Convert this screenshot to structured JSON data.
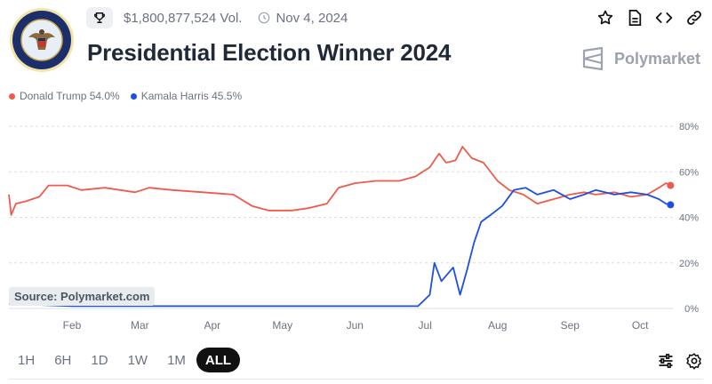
{
  "header": {
    "volume": "$1,800,877,524 Vol.",
    "date": "Nov 4, 2024",
    "title": "Presidential Election Winner 2024",
    "brand": "Polymarket",
    "icons": [
      "trophy-icon",
      "clock-icon",
      "star-icon",
      "document-icon",
      "code-icon",
      "link-icon"
    ]
  },
  "legend": [
    {
      "label": "Donald Trump 54.0%",
      "color": "#ef5a4f"
    },
    {
      "label": "Kamala Harris 45.5%",
      "color": "#1e4fe0"
    }
  ],
  "source": "Source: Polymarket.com",
  "timeframes": {
    "options": [
      "1H",
      "6H",
      "1D",
      "1W",
      "1M",
      "ALL"
    ],
    "selected": "ALL"
  },
  "chart_data": {
    "type": "line",
    "x_ticks": [
      "Feb",
      "Mar",
      "Apr",
      "May",
      "Jun",
      "Jul",
      "Aug",
      "Sep",
      "Oct"
    ],
    "x_tick_dates": [
      "2024-02-01",
      "2024-03-01",
      "2024-04-01",
      "2024-05-01",
      "2024-06-01",
      "2024-07-01",
      "2024-08-01",
      "2024-09-01",
      "2024-10-01"
    ],
    "x_range": [
      "2024-01-05",
      "2024-10-15"
    ],
    "y_ticks": [
      "0%",
      "20%",
      "40%",
      "60%",
      "80%"
    ],
    "ylim": [
      0,
      80
    ],
    "grid": true,
    "series": [
      {
        "name": "Donald Trump",
        "color": "#ef5a4f",
        "points": [
          [
            "2024-01-05",
            50
          ],
          [
            "2024-01-06",
            41
          ],
          [
            "2024-01-08",
            46
          ],
          [
            "2024-01-12",
            47
          ],
          [
            "2024-01-18",
            49
          ],
          [
            "2024-01-22",
            54
          ],
          [
            "2024-01-30",
            54
          ],
          [
            "2024-02-05",
            52
          ],
          [
            "2024-02-15",
            53
          ],
          [
            "2024-02-28",
            51
          ],
          [
            "2024-03-05",
            53
          ],
          [
            "2024-03-15",
            52
          ],
          [
            "2024-03-28",
            51
          ],
          [
            "2024-04-10",
            50
          ],
          [
            "2024-04-18",
            45
          ],
          [
            "2024-04-25",
            43
          ],
          [
            "2024-05-05",
            43
          ],
          [
            "2024-05-12",
            44
          ],
          [
            "2024-05-20",
            46
          ],
          [
            "2024-05-25",
            53
          ],
          [
            "2024-06-01",
            55
          ],
          [
            "2024-06-10",
            56
          ],
          [
            "2024-06-20",
            56
          ],
          [
            "2024-06-27",
            58
          ],
          [
            "2024-07-03",
            62
          ],
          [
            "2024-07-07",
            68
          ],
          [
            "2024-07-10",
            64
          ],
          [
            "2024-07-14",
            65
          ],
          [
            "2024-07-17",
            71
          ],
          [
            "2024-07-21",
            66
          ],
          [
            "2024-07-26",
            64
          ],
          [
            "2024-08-01",
            56
          ],
          [
            "2024-08-06",
            52
          ],
          [
            "2024-08-12",
            50
          ],
          [
            "2024-08-18",
            46
          ],
          [
            "2024-08-25",
            48
          ],
          [
            "2024-09-01",
            50
          ],
          [
            "2024-09-07",
            51
          ],
          [
            "2024-09-12",
            50
          ],
          [
            "2024-09-20",
            51
          ],
          [
            "2024-09-27",
            49
          ],
          [
            "2024-10-04",
            50
          ],
          [
            "2024-10-09",
            53
          ],
          [
            "2024-10-12",
            55
          ],
          [
            "2024-10-14",
            54
          ]
        ]
      },
      {
        "name": "Kamala Harris",
        "color": "#1e4fe0",
        "points": [
          [
            "2024-01-05",
            2
          ],
          [
            "2024-02-01",
            1
          ],
          [
            "2024-03-01",
            1
          ],
          [
            "2024-04-01",
            1
          ],
          [
            "2024-05-01",
            1
          ],
          [
            "2024-06-01",
            1
          ],
          [
            "2024-06-28",
            1
          ],
          [
            "2024-07-03",
            6
          ],
          [
            "2024-07-05",
            20
          ],
          [
            "2024-07-08",
            12
          ],
          [
            "2024-07-13",
            18
          ],
          [
            "2024-07-16",
            6
          ],
          [
            "2024-07-19",
            17
          ],
          [
            "2024-07-22",
            29
          ],
          [
            "2024-07-25",
            38
          ],
          [
            "2024-07-29",
            41
          ],
          [
            "2024-08-03",
            45
          ],
          [
            "2024-08-08",
            52
          ],
          [
            "2024-08-13",
            53
          ],
          [
            "2024-08-18",
            50
          ],
          [
            "2024-08-25",
            52
          ],
          [
            "2024-09-01",
            48
          ],
          [
            "2024-09-07",
            50
          ],
          [
            "2024-09-12",
            52
          ],
          [
            "2024-09-20",
            50
          ],
          [
            "2024-09-27",
            51
          ],
          [
            "2024-10-04",
            50
          ],
          [
            "2024-10-09",
            48
          ],
          [
            "2024-10-12",
            46
          ],
          [
            "2024-10-14",
            45.5
          ]
        ]
      }
    ]
  }
}
